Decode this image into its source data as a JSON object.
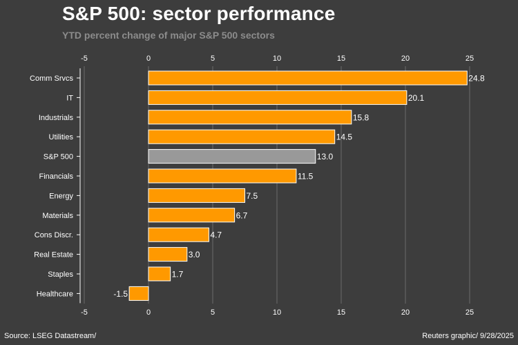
{
  "header": {
    "title": "S&P 500: sector performance",
    "subtitle": "YTD percent change of major S&P 500 sectors"
  },
  "footer": {
    "source": "Source: LSEG Datastream/",
    "credit": "Reuters graphic/ 9/28/2025"
  },
  "colors": {
    "bar": "#ff9900",
    "highlight": "#999999",
    "gridline": "#6a6a6a",
    "background": "#3d3d3d"
  },
  "chart_data": {
    "type": "bar",
    "orientation": "horizontal",
    "title": "S&P 500: sector performance",
    "subtitle": "YTD percent change of major S&P 500 sectors",
    "xlabel": "",
    "ylabel": "",
    "xlim": [
      -5,
      25
    ],
    "xticks": [
      -5,
      0,
      5,
      10,
      15,
      20,
      25
    ],
    "tick_labels": [
      "-5",
      "0",
      "5",
      "10",
      "15",
      "20",
      "25"
    ],
    "grid": true,
    "highlighted_category": "S&P 500",
    "categories": [
      "Comm Srvcs",
      "IT",
      "Industrials",
      "Utilities",
      "S&P 500",
      "Financials",
      "Energy",
      "Materials",
      "Cons Discr.",
      "Real Estate",
      "Staples",
      "Healthcare"
    ],
    "values": [
      24.8,
      20.1,
      15.8,
      14.5,
      13.0,
      11.5,
      7.5,
      6.7,
      4.7,
      3.0,
      1.7,
      -1.5
    ],
    "value_labels": [
      "24.8",
      "20.1",
      "15.8",
      "14.5",
      "13.0",
      "11.5",
      "7.5",
      "6.7",
      "4.7",
      "3.0",
      "1.7",
      "-1.5"
    ]
  }
}
